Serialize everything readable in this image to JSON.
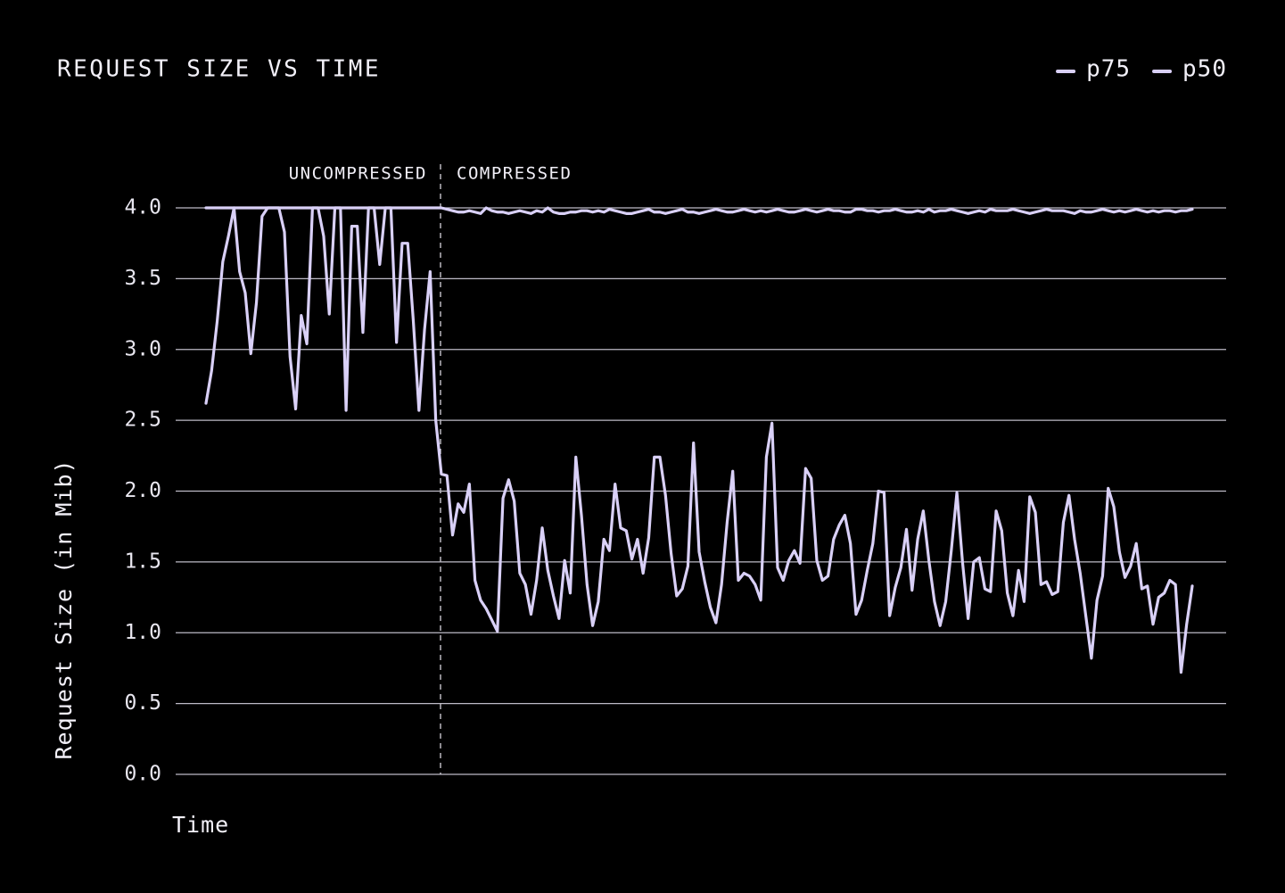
{
  "chart_data": {
    "type": "line",
    "title": "REQUEST SIZE VS TIME",
    "xlabel": "Time",
    "ylabel": "Request Size (in Mib)",
    "annotations": [
      "UNCOMPRESSED",
      "COMPRESSED"
    ],
    "legend": "top-right",
    "grid": true,
    "ylim": [
      0,
      4
    ],
    "yticks": [
      {
        "value": 0,
        "label": "0.0"
      },
      {
        "value": 0.5,
        "label": "0.5"
      },
      {
        "value": 1,
        "label": "1.0"
      },
      {
        "value": 1.5,
        "label": "1.5"
      },
      {
        "value": 2,
        "label": "2.0"
      },
      {
        "value": 2.5,
        "label": "2.5"
      },
      {
        "value": 3,
        "label": "3.0"
      },
      {
        "value": 3.5,
        "label": "3.5"
      },
      {
        "value": 4,
        "label": "4.0"
      }
    ],
    "series": [
      {
        "name": "p75",
        "color": "#d9d0f7",
        "values": [
          4.0,
          4.0,
          4.0,
          4.0,
          4.0,
          4.0,
          4.0,
          4.0,
          4.0,
          4.0,
          4.0,
          4.0,
          4.0,
          4.0,
          4.0,
          4.0,
          4.0,
          4.0,
          4.0,
          4.0,
          4.0,
          4.0,
          4.0,
          4.0,
          4.0,
          4.0,
          4.0,
          4.0,
          4.0,
          4.0,
          4.0,
          4.0,
          4.0,
          4.0,
          4.0,
          4.0,
          4.0,
          4.0,
          4.0,
          4.0,
          4.0,
          4.0,
          4.0,
          3.99,
          3.98,
          3.97,
          3.97,
          3.98,
          3.97,
          3.96,
          4.0,
          3.98,
          3.97,
          3.97,
          3.96,
          3.97,
          3.98,
          3.97,
          3.96,
          3.98,
          3.97,
          4.0,
          3.97,
          3.96,
          3.96,
          3.97,
          3.97,
          3.98,
          3.98,
          3.97,
          3.98,
          3.97,
          3.99,
          3.98,
          3.97,
          3.96,
          3.96,
          3.97,
          3.98,
          3.99,
          3.97,
          3.97,
          3.96,
          3.97,
          3.98,
          3.99,
          3.97,
          3.97,
          3.96,
          3.97,
          3.98,
          3.99,
          3.98,
          3.97,
          3.97,
          3.98,
          3.99,
          3.98,
          3.97,
          3.98,
          3.97,
          3.98,
          3.99,
          3.98,
          3.97,
          3.97,
          3.98,
          3.99,
          3.98,
          3.97,
          3.98,
          3.99,
          3.98,
          3.98,
          3.97,
          3.97,
          3.99,
          3.99,
          3.98,
          3.98,
          3.97,
          3.98,
          3.98,
          3.99,
          3.98,
          3.97,
          3.97,
          3.98,
          3.97,
          3.99,
          3.97,
          3.98,
          3.98,
          3.99,
          3.98,
          3.97,
          3.96,
          3.97,
          3.98,
          3.97,
          3.99,
          3.98,
          3.98,
          3.98,
          3.99,
          3.98,
          3.97,
          3.96,
          3.97,
          3.98,
          3.99,
          3.98,
          3.98,
          3.98,
          3.97,
          3.96,
          3.98,
          3.97,
          3.97,
          3.98,
          3.99,
          3.98,
          3.97,
          3.98,
          3.97,
          3.98,
          3.99,
          3.98,
          3.97,
          3.98,
          3.97,
          3.98,
          3.98,
          3.97,
          3.98,
          3.98,
          3.99
        ]
      },
      {
        "name": "p50",
        "color": "#d9d0f7",
        "values": [
          2.62,
          2.85,
          3.2,
          3.62,
          3.8,
          4.0,
          3.55,
          3.4,
          2.97,
          3.33,
          3.94,
          4.0,
          4.0,
          4.0,
          3.83,
          2.95,
          2.58,
          3.24,
          3.04,
          4.0,
          4.0,
          3.8,
          3.25,
          4.0,
          4.0,
          2.57,
          3.87,
          3.87,
          3.12,
          4.0,
          4.0,
          3.6,
          4.0,
          4.0,
          3.05,
          3.75,
          3.75,
          3.2,
          2.57,
          3.14,
          3.55,
          2.5,
          2.12,
          2.11,
          1.69,
          1.91,
          1.85,
          2.05,
          1.37,
          1.23,
          1.17,
          1.09,
          1.01,
          1.95,
          2.08,
          1.93,
          1.42,
          1.34,
          1.13,
          1.37,
          1.74,
          1.44,
          1.26,
          1.1,
          1.51,
          1.28,
          2.24,
          1.83,
          1.34,
          1.05,
          1.22,
          1.66,
          1.58,
          2.05,
          1.74,
          1.72,
          1.52,
          1.66,
          1.42,
          1.67,
          2.24,
          2.24,
          1.97,
          1.56,
          1.26,
          1.31,
          1.47,
          2.34,
          1.57,
          1.36,
          1.18,
          1.07,
          1.34,
          1.78,
          2.14,
          1.37,
          1.42,
          1.4,
          1.34,
          1.23,
          2.24,
          2.48,
          1.46,
          1.37,
          1.51,
          1.58,
          1.49,
          2.16,
          2.09,
          1.51,
          1.37,
          1.4,
          1.66,
          1.76,
          1.83,
          1.63,
          1.13,
          1.23,
          1.44,
          1.63,
          2.0,
          1.99,
          1.12,
          1.32,
          1.46,
          1.73,
          1.3,
          1.66,
          1.86,
          1.51,
          1.22,
          1.05,
          1.22,
          1.58,
          1.99,
          1.5,
          1.1,
          1.5,
          1.53,
          1.31,
          1.29,
          1.86,
          1.72,
          1.28,
          1.12,
          1.44,
          1.22,
          1.96,
          1.85,
          1.34,
          1.36,
          1.27,
          1.29,
          1.78,
          1.97,
          1.66,
          1.42,
          1.12,
          0.82,
          1.23,
          1.4,
          2.02,
          1.89,
          1.57,
          1.39,
          1.47,
          1.63,
          1.31,
          1.33,
          1.06,
          1.25,
          1.28,
          1.37,
          1.34,
          0.72,
          1.06,
          1.33
        ]
      }
    ]
  }
}
